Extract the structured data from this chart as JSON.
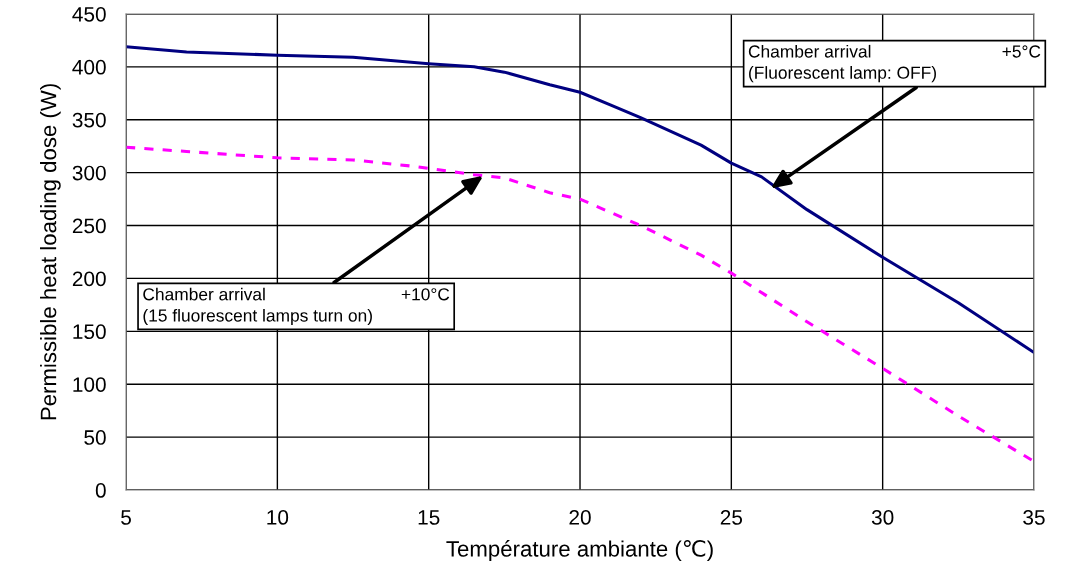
{
  "chart_data": {
    "type": "line",
    "xlabel": "Température ambiante (℃)",
    "ylabel": "Permissible heat loading dose (W)",
    "series": [
      {
        "color": "#000080",
        "line_style": "solid",
        "x": [
          5,
          7,
          10,
          12.5,
          15,
          16.5,
          17.5,
          19,
          20,
          21,
          22,
          24,
          25,
          26,
          27.5,
          30,
          32.5,
          35
        ],
        "values": [
          419,
          414,
          411,
          409,
          403,
          400,
          395,
          383,
          376,
          364,
          352,
          326,
          309,
          296,
          265,
          220,
          177,
          130
        ]
      },
      {
        "color": "#ff00ff",
        "line_style": "dashed",
        "x": [
          5,
          7,
          10,
          12.5,
          14.5,
          16.5,
          17.5,
          19,
          20,
          22,
          24,
          25,
          27.5,
          30,
          32.5,
          35
        ],
        "values": [
          324,
          320,
          314,
          312,
          306,
          298,
          295,
          281,
          275,
          250,
          222,
          205,
          159,
          115,
          70,
          27
        ]
      }
    ],
    "xlim": [
      5,
      35
    ],
    "xticks": [
      5,
      10,
      15,
      20,
      25,
      30,
      35
    ],
    "ylim": [
      0,
      450
    ],
    "yticks": [
      0,
      50,
      100,
      150,
      200,
      250,
      300,
      350,
      400,
      450
    ],
    "grid": true,
    "legend": false,
    "annotations": [
      {
        "text": "Chamber arrival                           +5°C\n(Fluorescent lamp: OFF)",
        "x": 26.3,
        "y": 285
      },
      {
        "text": "Chamber arrival                            +10°C\n(15 fluorescent lamps turn on)",
        "x": 16.8,
        "y": 297
      }
    ]
  }
}
